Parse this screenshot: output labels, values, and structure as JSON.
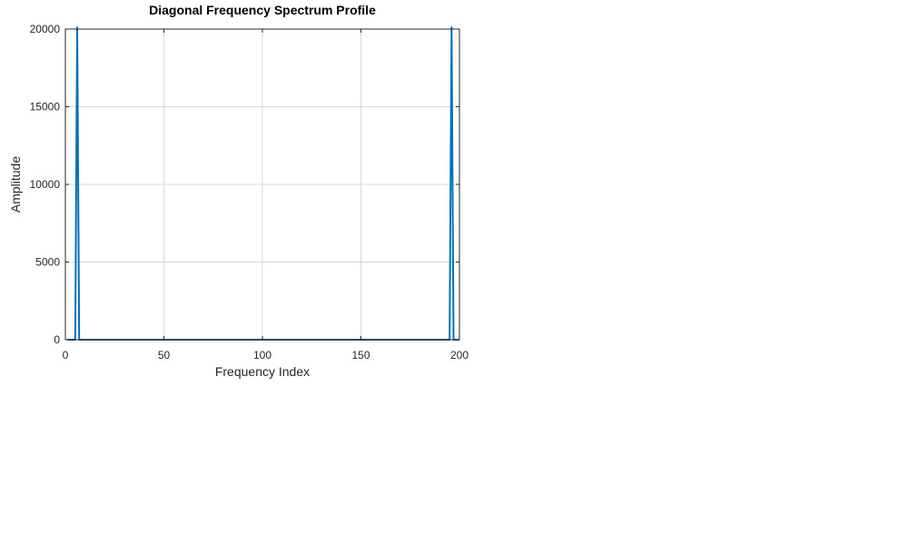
{
  "chart_data": {
    "type": "line",
    "title": "Diagonal Frequency Spectrum Profile",
    "xlabel": "Frequency Index",
    "ylabel": "Amplitude",
    "xlim": [
      0,
      200
    ],
    "ylim": [
      0,
      20000
    ],
    "x_ticks": [
      0,
      50,
      100,
      150,
      200
    ],
    "y_ticks": [
      0,
      5000,
      10000,
      15000,
      20000
    ],
    "grid": true,
    "legend": "none",
    "line_color": "#0072BD",
    "series": [
      {
        "x": [
          1,
          2,
          3,
          4,
          5,
          6,
          7,
          8,
          9,
          10,
          20,
          40,
          60,
          80,
          100,
          120,
          140,
          160,
          180,
          190,
          192,
          193,
          194,
          195,
          196,
          197,
          198,
          199,
          200
        ],
        "values": [
          0,
          0,
          0,
          0,
          0,
          20400,
          0,
          0,
          0,
          0,
          0,
          0,
          0,
          0,
          0,
          0,
          0,
          0,
          0,
          0,
          0,
          0,
          0,
          0,
          20400,
          0,
          0,
          0,
          0
        ]
      }
    ]
  }
}
